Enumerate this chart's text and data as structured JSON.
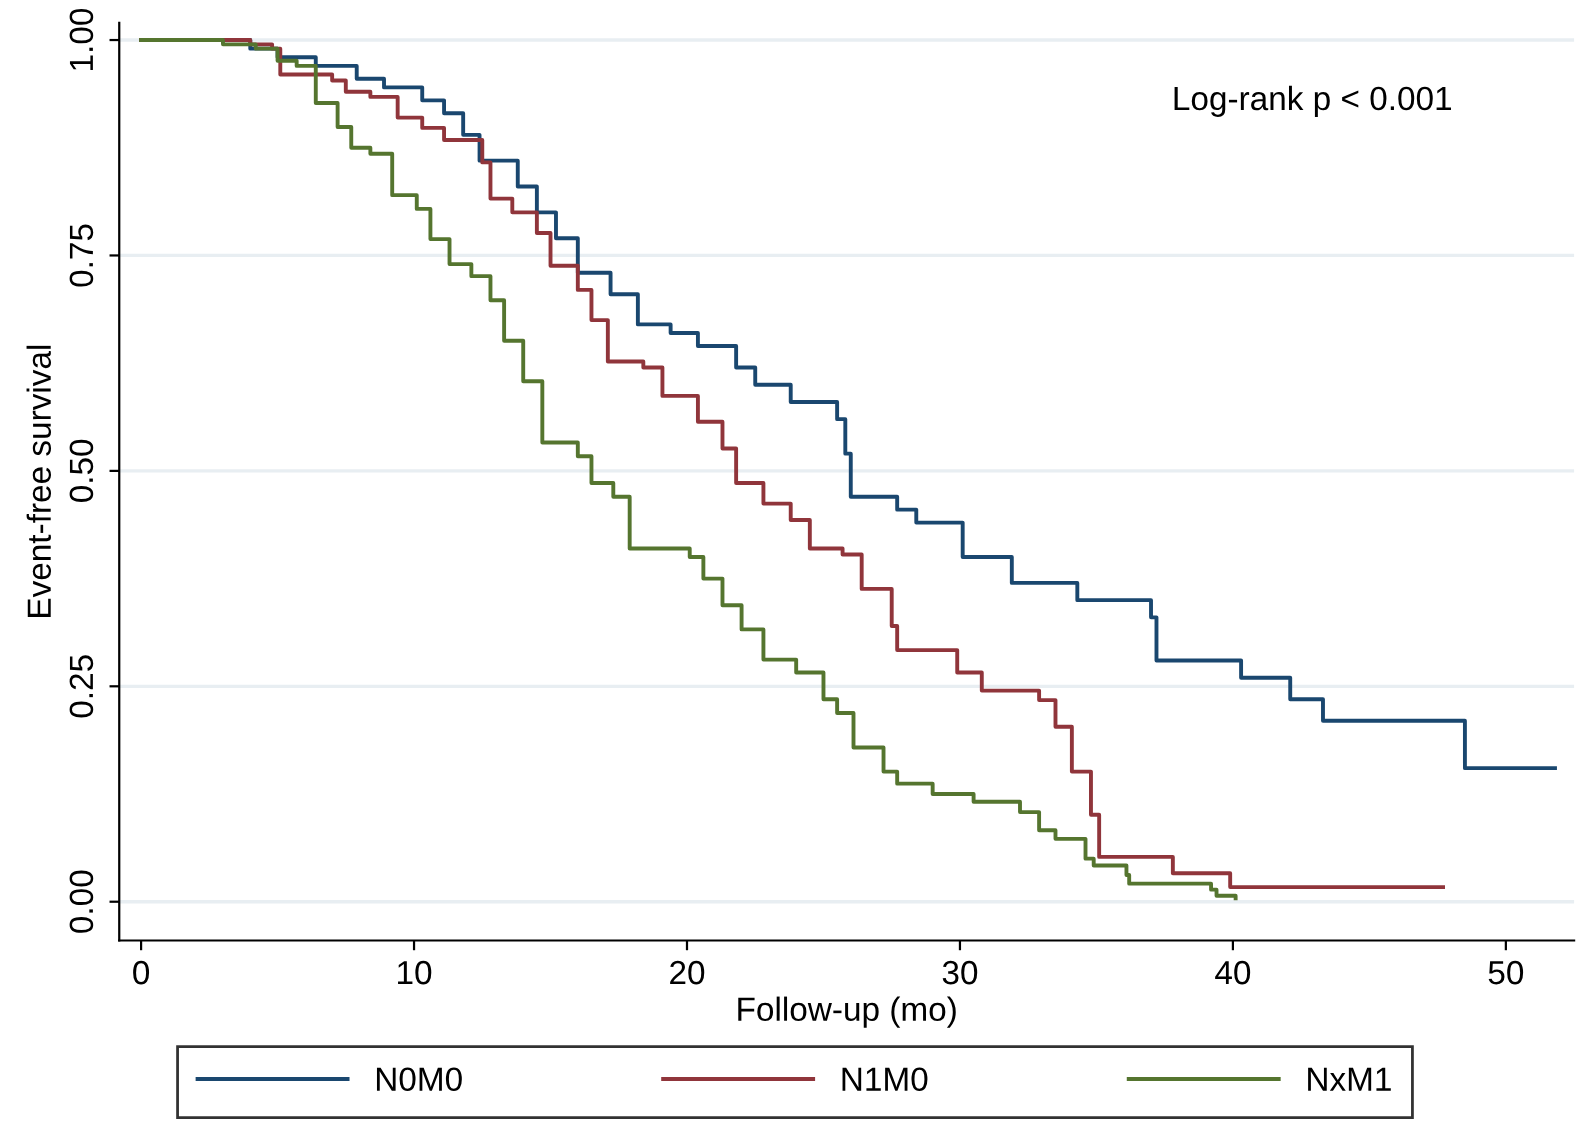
{
  "chart_data": {
    "type": "step",
    "xlabel": "Follow-up (mo)",
    "ylabel": "Event-free survival",
    "annotations": [
      "Log-rank p < 0.001"
    ],
    "xlim": [
      -0.8,
      52.5
    ],
    "ylim": [
      -0.045,
      1.02
    ],
    "xticks": [
      0,
      10,
      20,
      30,
      40,
      50
    ],
    "yticks": [
      {
        "value": 0,
        "label": "0.00"
      },
      {
        "value": 0.25,
        "label": "0.25"
      },
      {
        "value": 0.5,
        "label": "0.50"
      },
      {
        "value": 0.75,
        "label": "0.75"
      },
      {
        "value": 1,
        "label": "1.00"
      }
    ],
    "grid": "y",
    "legend": "bottom",
    "line_style": "solid",
    "marker": "none",
    "series": [
      {
        "name": "N0M0",
        "color": "#1a476f",
        "x": [
          0,
          4.0,
          5.0,
          6.4,
          7.9,
          8.9,
          10.3,
          11.1,
          11.8,
          12.4,
          13.8,
          14.5,
          15.2,
          16.0,
          17.2,
          18.2,
          19.4,
          20.4,
          21.8,
          22.5,
          23.8,
          25.5,
          25.8,
          26.0,
          27.7,
          28.4,
          30.1,
          31.9,
          34.3,
          37.0,
          37.2,
          40.3,
          42.1,
          43.3,
          48.5,
          51.8
        ],
        "values": [
          1.0,
          0.99,
          0.98,
          0.97,
          0.955,
          0.945,
          0.93,
          0.915,
          0.89,
          0.86,
          0.83,
          0.8,
          0.77,
          0.73,
          0.705,
          0.67,
          0.66,
          0.645,
          0.62,
          0.6,
          0.58,
          0.56,
          0.52,
          0.47,
          0.455,
          0.44,
          0.4,
          0.37,
          0.35,
          0.33,
          0.28,
          0.26,
          0.235,
          0.21,
          0.155,
          0.155
        ]
      },
      {
        "name": "N1M0",
        "color": "#90353b",
        "x": [
          0,
          4.0,
          4.8,
          5.1,
          7.0,
          7.5,
          8.4,
          9.4,
          10.3,
          11.1,
          12.5,
          12.8,
          13.6,
          14.5,
          15.0,
          16.0,
          16.5,
          17.1,
          18.4,
          19.1,
          20.4,
          21.3,
          21.8,
          22.8,
          23.8,
          24.5,
          25.7,
          26.4,
          27.5,
          27.7,
          29.9,
          30.8,
          32.9,
          33.5,
          34.1,
          34.8,
          35.1,
          37.8,
          39.9,
          47.7
        ],
        "values": [
          1.0,
          0.995,
          0.99,
          0.96,
          0.953,
          0.94,
          0.934,
          0.91,
          0.898,
          0.884,
          0.858,
          0.816,
          0.8,
          0.776,
          0.738,
          0.71,
          0.675,
          0.627,
          0.62,
          0.587,
          0.557,
          0.526,
          0.486,
          0.462,
          0.443,
          0.41,
          0.403,
          0.363,
          0.32,
          0.292,
          0.266,
          0.245,
          0.234,
          0.203,
          0.151,
          0.101,
          0.052,
          0.033,
          0.017,
          0.017
        ]
      },
      {
        "name": "NxM1",
        "color": "#55752f",
        "x": [
          0,
          3.0,
          4.2,
          5.0,
          5.7,
          6.4,
          7.2,
          7.7,
          8.4,
          9.2,
          10.1,
          10.6,
          11.3,
          12.1,
          12.8,
          13.3,
          14.0,
          14.7,
          16.0,
          16.5,
          17.3,
          17.9,
          20.1,
          20.6,
          21.3,
          22.0,
          22.8,
          24.0,
          25.0,
          25.5,
          26.1,
          27.2,
          27.7,
          29.0,
          30.5,
          32.2,
          32.9,
          33.5,
          34.6,
          34.9,
          36.1,
          36.2,
          39.2,
          39.4,
          40.1
        ],
        "values": [
          1.0,
          0.995,
          0.99,
          0.976,
          0.97,
          0.927,
          0.899,
          0.875,
          0.868,
          0.82,
          0.804,
          0.769,
          0.74,
          0.726,
          0.698,
          0.651,
          0.604,
          0.533,
          0.517,
          0.486,
          0.47,
          0.41,
          0.4,
          0.375,
          0.344,
          0.316,
          0.281,
          0.266,
          0.235,
          0.219,
          0.179,
          0.151,
          0.137,
          0.125,
          0.116,
          0.104,
          0.083,
          0.073,
          0.05,
          0.042,
          0.031,
          0.021,
          0.014,
          0.007,
          0.004
        ]
      }
    ]
  }
}
